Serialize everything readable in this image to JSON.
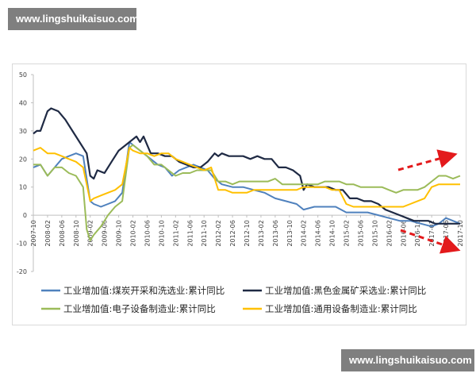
{
  "watermark": {
    "top": "www.lingshuikaisuo.com",
    "bottom": "www.lingshuikaisuo.com"
  },
  "chart_data": {
    "type": "line",
    "title": "",
    "xlabel": "",
    "ylabel": "",
    "ylim": [
      -20,
      50
    ],
    "yticks": [
      -20,
      -10,
      0,
      10,
      20,
      30,
      40,
      50
    ],
    "x_start": "2007-10",
    "x_end": "2017-10",
    "x_ticks": [
      "2007-10",
      "2008-02",
      "2008-06",
      "2008-10",
      "2009-02",
      "2009-06",
      "2009-10",
      "2010-02",
      "2010-06",
      "2010-10",
      "2011-02",
      "2011-06",
      "2011-10",
      "2012-02",
      "2012-06",
      "2012-10",
      "2013-02",
      "2013-06",
      "2013-10",
      "2014-02",
      "2014-06",
      "2014-10",
      "2015-02",
      "2015-06",
      "2015-10",
      "2016-02",
      "2016-06",
      "2016-10",
      "2017-02",
      "2017-06",
      "2017-10"
    ],
    "x_tick_labels": [
      "2007-10",
      "2008-02",
      "2008-06",
      "2008-10",
      "2009-02",
      "2009-06",
      "2009-10",
      "2010-02",
      "2010-06",
      "2010-10",
      "2011-02",
      "2011-06",
      "2011-10",
      "2012-02",
      "2012-06",
      "2012-10",
      "2013-02",
      "2013-06",
      "2013-10",
      "2014-02",
      "2014-06",
      "2014-10",
      "2015-02",
      "2015-06",
      "2015-10",
      "2016-02",
      "2016-06",
      "2016-10",
      "2017-02",
      "2017-06",
      "2017-10"
    ],
    "grid": false,
    "legend_position": "bottom",
    "series": [
      {
        "name": "工业增加值:煤炭开采和洗选业:累计同比",
        "color": "#4f81bd",
        "points": [
          [
            "2007-10",
            17
          ],
          [
            "2007-12",
            18
          ],
          [
            "2008-02",
            14
          ],
          [
            "2008-04",
            17
          ],
          [
            "2008-06",
            20
          ],
          [
            "2008-08",
            21
          ],
          [
            "2008-10",
            22
          ],
          [
            "2008-12",
            21
          ],
          [
            "2009-01",
            13
          ],
          [
            "2009-02",
            5
          ],
          [
            "2009-03",
            4
          ],
          [
            "2009-05",
            3
          ],
          [
            "2009-07",
            4
          ],
          [
            "2009-09",
            5
          ],
          [
            "2009-11",
            8
          ],
          [
            "2010-01",
            26
          ],
          [
            "2010-03",
            24
          ],
          [
            "2010-05",
            22
          ],
          [
            "2010-07",
            20
          ],
          [
            "2010-09",
            18
          ],
          [
            "2010-11",
            17
          ],
          [
            "2011-01",
            14
          ],
          [
            "2011-03",
            16
          ],
          [
            "2011-05",
            17
          ],
          [
            "2011-07",
            18
          ],
          [
            "2011-09",
            17
          ],
          [
            "2011-11",
            16
          ],
          [
            "2012-01",
            13
          ],
          [
            "2012-03",
            11
          ],
          [
            "2012-06",
            10
          ],
          [
            "2012-09",
            10
          ],
          [
            "2012-12",
            9
          ],
          [
            "2013-03",
            8
          ],
          [
            "2013-06",
            6
          ],
          [
            "2013-09",
            5
          ],
          [
            "2013-12",
            4
          ],
          [
            "2014-02",
            2
          ],
          [
            "2014-05",
            3
          ],
          [
            "2014-08",
            3
          ],
          [
            "2014-11",
            3
          ],
          [
            "2015-02",
            1
          ],
          [
            "2015-05",
            1
          ],
          [
            "2015-08",
            1
          ],
          [
            "2015-11",
            0
          ],
          [
            "2016-02",
            -1
          ],
          [
            "2016-05",
            -2
          ],
          [
            "2016-08",
            -2
          ],
          [
            "2016-11",
            -3
          ],
          [
            "2017-02",
            -4
          ],
          [
            "2017-04",
            -3
          ],
          [
            "2017-06",
            -1
          ],
          [
            "2017-08",
            -2
          ],
          [
            "2017-10",
            -3
          ]
        ]
      },
      {
        "name": "工业增加值:黑色金属矿采选业:累计同比",
        "color": "#1f2a44",
        "points": [
          [
            "2007-10",
            29
          ],
          [
            "2007-11",
            30
          ],
          [
            "2007-12",
            30
          ],
          [
            "2008-02",
            37
          ],
          [
            "2008-03",
            38
          ],
          [
            "2008-05",
            37
          ],
          [
            "2008-07",
            34
          ],
          [
            "2008-09",
            30
          ],
          [
            "2008-11",
            26
          ],
          [
            "2009-01",
            22
          ],
          [
            "2009-02",
            14
          ],
          [
            "2009-03",
            13
          ],
          [
            "2009-04",
            16
          ],
          [
            "2009-06",
            15
          ],
          [
            "2009-08",
            19
          ],
          [
            "2009-10",
            23
          ],
          [
            "2009-12",
            25
          ],
          [
            "2010-02",
            27
          ],
          [
            "2010-03",
            28
          ],
          [
            "2010-04",
            26
          ],
          [
            "2010-05",
            28
          ],
          [
            "2010-07",
            22
          ],
          [
            "2010-09",
            22
          ],
          [
            "2010-11",
            21
          ],
          [
            "2011-01",
            21
          ],
          [
            "2011-03",
            19
          ],
          [
            "2011-05",
            18
          ],
          [
            "2011-07",
            17
          ],
          [
            "2011-09",
            17
          ],
          [
            "2011-11",
            19
          ],
          [
            "2012-01",
            22
          ],
          [
            "2012-02",
            21
          ],
          [
            "2012-03",
            22
          ],
          [
            "2012-05",
            21
          ],
          [
            "2012-07",
            21
          ],
          [
            "2012-09",
            21
          ],
          [
            "2012-11",
            20
          ],
          [
            "2013-01",
            21
          ],
          [
            "2013-03",
            20
          ],
          [
            "2013-05",
            20
          ],
          [
            "2013-07",
            17
          ],
          [
            "2013-09",
            17
          ],
          [
            "2013-11",
            16
          ],
          [
            "2014-01",
            14
          ],
          [
            "2014-02",
            9
          ],
          [
            "2014-03",
            11
          ],
          [
            "2014-05",
            10
          ],
          [
            "2014-07",
            10
          ],
          [
            "2014-09",
            10
          ],
          [
            "2014-11",
            9
          ],
          [
            "2015-01",
            9
          ],
          [
            "2015-03",
            6
          ],
          [
            "2015-05",
            6
          ],
          [
            "2015-07",
            5
          ],
          [
            "2015-09",
            5
          ],
          [
            "2015-11",
            4
          ],
          [
            "2016-01",
            2
          ],
          [
            "2016-03",
            1
          ],
          [
            "2016-05",
            0
          ],
          [
            "2016-07",
            -1
          ],
          [
            "2016-09",
            -2
          ],
          [
            "2016-11",
            -2
          ],
          [
            "2017-01",
            -2
          ],
          [
            "2017-03",
            -3
          ],
          [
            "2017-05",
            -3
          ],
          [
            "2017-07",
            -3
          ],
          [
            "2017-10",
            -3
          ]
        ]
      },
      {
        "name": "工业增加值:电子设备制造业:累计同比",
        "color": "#9bbb59",
        "points": [
          [
            "2007-10",
            18
          ],
          [
            "2007-12",
            18
          ],
          [
            "2008-02",
            14
          ],
          [
            "2008-04",
            17
          ],
          [
            "2008-06",
            17
          ],
          [
            "2008-08",
            15
          ],
          [
            "2008-10",
            14
          ],
          [
            "2008-12",
            10
          ],
          [
            "2009-01",
            -5
          ],
          [
            "2009-02",
            -9
          ],
          [
            "2009-03",
            -7
          ],
          [
            "2009-05",
            -4
          ],
          [
            "2009-07",
            0
          ],
          [
            "2009-09",
            3
          ],
          [
            "2009-11",
            5
          ],
          [
            "2010-01",
            24
          ],
          [
            "2010-02",
            25
          ],
          [
            "2010-04",
            23
          ],
          [
            "2010-06",
            21
          ],
          [
            "2010-08",
            18
          ],
          [
            "2010-10",
            18
          ],
          [
            "2010-12",
            16
          ],
          [
            "2011-02",
            14
          ],
          [
            "2011-04",
            15
          ],
          [
            "2011-06",
            15
          ],
          [
            "2011-08",
            16
          ],
          [
            "2011-10",
            16
          ],
          [
            "2011-12",
            16
          ],
          [
            "2012-02",
            12
          ],
          [
            "2012-04",
            12
          ],
          [
            "2012-06",
            11
          ],
          [
            "2012-08",
            12
          ],
          [
            "2012-10",
            12
          ],
          [
            "2012-12",
            12
          ],
          [
            "2013-02",
            12
          ],
          [
            "2013-04",
            12
          ],
          [
            "2013-06",
            13
          ],
          [
            "2013-08",
            11
          ],
          [
            "2013-10",
            11
          ],
          [
            "2013-12",
            11
          ],
          [
            "2014-02",
            11
          ],
          [
            "2014-04",
            11
          ],
          [
            "2014-06",
            11
          ],
          [
            "2014-08",
            12
          ],
          [
            "2014-10",
            12
          ],
          [
            "2014-12",
            12
          ],
          [
            "2015-02",
            11
          ],
          [
            "2015-04",
            11
          ],
          [
            "2015-06",
            10
          ],
          [
            "2015-08",
            10
          ],
          [
            "2015-10",
            10
          ],
          [
            "2015-12",
            10
          ],
          [
            "2016-02",
            9
          ],
          [
            "2016-04",
            8
          ],
          [
            "2016-06",
            9
          ],
          [
            "2016-08",
            9
          ],
          [
            "2016-10",
            9
          ],
          [
            "2016-12",
            10
          ],
          [
            "2017-02",
            12
          ],
          [
            "2017-04",
            14
          ],
          [
            "2017-06",
            14
          ],
          [
            "2017-08",
            13
          ],
          [
            "2017-10",
            14
          ]
        ]
      },
      {
        "name": "工业增加值:通用设备制造业:累计同比",
        "color": "#ffc000",
        "points": [
          [
            "2007-10",
            23
          ],
          [
            "2007-12",
            24
          ],
          [
            "2008-02",
            22
          ],
          [
            "2008-04",
            22
          ],
          [
            "2008-06",
            21
          ],
          [
            "2008-08",
            20
          ],
          [
            "2008-10",
            19
          ],
          [
            "2008-12",
            17
          ],
          [
            "2009-01",
            11
          ],
          [
            "2009-02",
            5
          ],
          [
            "2009-03",
            6
          ],
          [
            "2009-05",
            7
          ],
          [
            "2009-07",
            8
          ],
          [
            "2009-09",
            9
          ],
          [
            "2009-11",
            11
          ],
          [
            "2010-01",
            24
          ],
          [
            "2010-02",
            23
          ],
          [
            "2010-04",
            22
          ],
          [
            "2010-06",
            22
          ],
          [
            "2010-08",
            21
          ],
          [
            "2010-10",
            22
          ],
          [
            "2010-12",
            22
          ],
          [
            "2011-02",
            20
          ],
          [
            "2011-04",
            19
          ],
          [
            "2011-06",
            18
          ],
          [
            "2011-08",
            17
          ],
          [
            "2011-10",
            16
          ],
          [
            "2011-12",
            17
          ],
          [
            "2012-02",
            9
          ],
          [
            "2012-04",
            9
          ],
          [
            "2012-06",
            8
          ],
          [
            "2012-08",
            8
          ],
          [
            "2012-10",
            8
          ],
          [
            "2012-12",
            9
          ],
          [
            "2013-02",
            9
          ],
          [
            "2013-04",
            9
          ],
          [
            "2013-06",
            9
          ],
          [
            "2013-08",
            9
          ],
          [
            "2013-10",
            9
          ],
          [
            "2013-12",
            9
          ],
          [
            "2014-02",
            10
          ],
          [
            "2014-04",
            10
          ],
          [
            "2014-06",
            10
          ],
          [
            "2014-08",
            10
          ],
          [
            "2014-10",
            9
          ],
          [
            "2014-12",
            9
          ],
          [
            "2015-02",
            4
          ],
          [
            "2015-04",
            3
          ],
          [
            "2015-06",
            3
          ],
          [
            "2015-08",
            3
          ],
          [
            "2015-10",
            3
          ],
          [
            "2015-12",
            3
          ],
          [
            "2016-02",
            3
          ],
          [
            "2016-04",
            3
          ],
          [
            "2016-06",
            3
          ],
          [
            "2016-08",
            4
          ],
          [
            "2016-10",
            5
          ],
          [
            "2016-12",
            6
          ],
          [
            "2017-02",
            10
          ],
          [
            "2017-04",
            11
          ],
          [
            "2017-06",
            11
          ],
          [
            "2017-08",
            11
          ],
          [
            "2017-10",
            11
          ]
        ]
      }
    ]
  }
}
